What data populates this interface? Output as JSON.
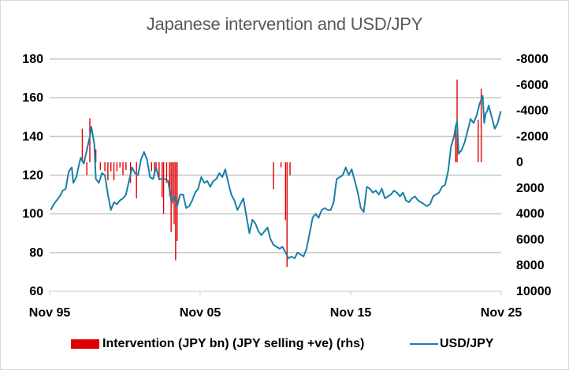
{
  "chart_data": {
    "type": "bar+line",
    "title": "Japanese intervention and USD/JPY",
    "xlabel": "",
    "ylabel_left": "",
    "ylabel_right": "",
    "x_range": [
      1995.83,
      2025.83
    ],
    "x_ticks": [
      {
        "label": "Nov 95",
        "t": 1995.83
      },
      {
        "label": "Nov 05",
        "t": 2005.83
      },
      {
        "label": "Nov 15",
        "t": 2015.83
      },
      {
        "label": "Nov 25",
        "t": 2025.83
      }
    ],
    "y_left": {
      "min": 60,
      "max": 180,
      "ticks": [
        "180",
        "160",
        "140",
        "120",
        "100",
        "80",
        "60"
      ],
      "tick_values": [
        180,
        160,
        140,
        120,
        100,
        80,
        60
      ]
    },
    "y_right": {
      "min": -8000,
      "max": 10000,
      "reversed": true,
      "ticks": [
        "-8000",
        "-6000",
        "-4000",
        "-2000",
        "0",
        "2000",
        "4000",
        "6000",
        "8000",
        "10000"
      ],
      "tick_values": [
        -8000,
        -6000,
        -4000,
        -2000,
        0,
        2000,
        4000,
        6000,
        8000,
        10000
      ]
    },
    "grid": "horizontal",
    "legend_position": "bottom",
    "series": [
      {
        "name": "Intervention (JPY bn) (JPY selling +ve) (rhs)",
        "type": "bar",
        "axis": "right",
        "color": "#e00000",
        "points": [
          [
            1998.0,
            -2600
          ],
          [
            1998.3,
            1000
          ],
          [
            1998.5,
            -3400
          ],
          [
            1998.9,
            -1000
          ],
          [
            1999.2,
            600
          ],
          [
            1999.5,
            700
          ],
          [
            1999.7,
            1400
          ],
          [
            1999.9,
            700
          ],
          [
            2000.1,
            1400
          ],
          [
            2000.3,
            700
          ],
          [
            2000.5,
            400
          ],
          [
            2000.7,
            1000
          ],
          [
            2000.9,
            600
          ],
          [
            2001.2,
            1600
          ],
          [
            2001.6,
            2800
          ],
          [
            2002.6,
            700
          ],
          [
            2002.8,
            1000
          ],
          [
            2002.9,
            400
          ],
          [
            2003.1,
            1400
          ],
          [
            2003.3,
            2700
          ],
          [
            2003.4,
            4000
          ],
          [
            2003.6,
            1600
          ],
          [
            2003.8,
            2600
          ],
          [
            2003.9,
            5400
          ],
          [
            2004.0,
            3200
          ],
          [
            2004.1,
            4800
          ],
          [
            2004.2,
            7600
          ],
          [
            2004.3,
            6100
          ],
          [
            2010.7,
            2100
          ],
          [
            2011.2,
            400
          ],
          [
            2011.5,
            4500
          ],
          [
            2011.6,
            8100
          ],
          [
            2011.8,
            1000
          ],
          [
            2022.7,
            0
          ],
          [
            2022.8,
            -2800
          ],
          [
            2022.9,
            -6400
          ],
          [
            2024.3,
            -3300
          ],
          [
            2024.5,
            -5700
          ]
        ]
      },
      {
        "name": "USD/JPY",
        "type": "line",
        "axis": "left",
        "color": "#1a7fa6",
        "points": [
          [
            1995.9,
            102
          ],
          [
            1996.1,
            105
          ],
          [
            1996.3,
            107
          ],
          [
            1996.5,
            109
          ],
          [
            1996.7,
            112
          ],
          [
            1996.9,
            113
          ],
          [
            1997.1,
            122
          ],
          [
            1997.3,
            124
          ],
          [
            1997.4,
            116
          ],
          [
            1997.6,
            119
          ],
          [
            1997.8,
            126
          ],
          [
            1997.9,
            129
          ],
          [
            1998.1,
            126
          ],
          [
            1998.3,
            133
          ],
          [
            1998.5,
            140
          ],
          [
            1998.6,
            145
          ],
          [
            1998.8,
            136
          ],
          [
            1998.9,
            118
          ],
          [
            1999.1,
            116
          ],
          [
            1999.3,
            121
          ],
          [
            1999.5,
            120
          ],
          [
            1999.7,
            110
          ],
          [
            1999.9,
            102
          ],
          [
            2000.1,
            106
          ],
          [
            2000.3,
            105
          ],
          [
            2000.5,
            107
          ],
          [
            2000.7,
            108
          ],
          [
            2000.9,
            110
          ],
          [
            2001.1,
            117
          ],
          [
            2001.3,
            124
          ],
          [
            2001.5,
            121
          ],
          [
            2001.7,
            120
          ],
          [
            2001.9,
            128
          ],
          [
            2002.1,
            132
          ],
          [
            2002.3,
            128
          ],
          [
            2002.5,
            119
          ],
          [
            2002.7,
            118
          ],
          [
            2002.9,
            124
          ],
          [
            2003.1,
            118
          ],
          [
            2003.3,
            118
          ],
          [
            2003.5,
            118
          ],
          [
            2003.7,
            117
          ],
          [
            2003.9,
            107
          ],
          [
            2004.1,
            109
          ],
          [
            2004.3,
            104
          ],
          [
            2004.5,
            110
          ],
          [
            2004.7,
            110
          ],
          [
            2004.9,
            103
          ],
          [
            2005.1,
            104
          ],
          [
            2005.3,
            107
          ],
          [
            2005.5,
            111
          ],
          [
            2005.7,
            113
          ],
          [
            2005.9,
            119
          ],
          [
            2006.1,
            116
          ],
          [
            2006.3,
            117
          ],
          [
            2006.5,
            114
          ],
          [
            2006.7,
            117
          ],
          [
            2006.9,
            118
          ],
          [
            2007.1,
            121
          ],
          [
            2007.3,
            119
          ],
          [
            2007.5,
            123
          ],
          [
            2007.7,
            116
          ],
          [
            2007.9,
            110
          ],
          [
            2008.1,
            107
          ],
          [
            2008.3,
            102
          ],
          [
            2008.5,
            105
          ],
          [
            2008.7,
            108
          ],
          [
            2008.9,
            99
          ],
          [
            2009.1,
            90
          ],
          [
            2009.3,
            97
          ],
          [
            2009.5,
            95
          ],
          [
            2009.7,
            91
          ],
          [
            2009.9,
            89
          ],
          [
            2010.1,
            91
          ],
          [
            2010.3,
            93
          ],
          [
            2010.5,
            87
          ],
          [
            2010.7,
            84
          ],
          [
            2010.9,
            83
          ],
          [
            2011.1,
            82
          ],
          [
            2011.3,
            83
          ],
          [
            2011.5,
            80
          ],
          [
            2011.7,
            77
          ],
          [
            2011.9,
            78
          ],
          [
            2012.1,
            77
          ],
          [
            2012.3,
            80
          ],
          [
            2012.5,
            79
          ],
          [
            2012.7,
            78
          ],
          [
            2012.9,
            82
          ],
          [
            2013.1,
            90
          ],
          [
            2013.3,
            98
          ],
          [
            2013.5,
            100
          ],
          [
            2013.7,
            98
          ],
          [
            2013.9,
            102
          ],
          [
            2014.1,
            103
          ],
          [
            2014.3,
            102
          ],
          [
            2014.5,
            102
          ],
          [
            2014.7,
            106
          ],
          [
            2014.9,
            118
          ],
          [
            2015.1,
            119
          ],
          [
            2015.3,
            120
          ],
          [
            2015.5,
            124
          ],
          [
            2015.7,
            120
          ],
          [
            2015.9,
            123
          ],
          [
            2016.1,
            117
          ],
          [
            2016.3,
            111
          ],
          [
            2016.5,
            103
          ],
          [
            2016.7,
            101
          ],
          [
            2016.9,
            114
          ],
          [
            2017.1,
            113
          ],
          [
            2017.3,
            111
          ],
          [
            2017.5,
            112
          ],
          [
            2017.7,
            110
          ],
          [
            2017.9,
            113
          ],
          [
            2018.1,
            108
          ],
          [
            2018.3,
            109
          ],
          [
            2018.5,
            110
          ],
          [
            2018.7,
            112
          ],
          [
            2018.9,
            111
          ],
          [
            2019.1,
            109
          ],
          [
            2019.3,
            111
          ],
          [
            2019.5,
            107
          ],
          [
            2019.7,
            106
          ],
          [
            2019.9,
            108
          ],
          [
            2020.1,
            109
          ],
          [
            2020.3,
            107
          ],
          [
            2020.5,
            106
          ],
          [
            2020.7,
            105
          ],
          [
            2020.9,
            104
          ],
          [
            2021.1,
            105
          ],
          [
            2021.3,
            109
          ],
          [
            2021.5,
            110
          ],
          [
            2021.7,
            111
          ],
          [
            2021.9,
            114
          ],
          [
            2022.1,
            115
          ],
          [
            2022.3,
            122
          ],
          [
            2022.5,
            135
          ],
          [
            2022.7,
            140
          ],
          [
            2022.8,
            145
          ],
          [
            2022.9,
            148
          ],
          [
            2023.0,
            131
          ],
          [
            2023.2,
            133
          ],
          [
            2023.4,
            137
          ],
          [
            2023.6,
            143
          ],
          [
            2023.8,
            149
          ],
          [
            2024.0,
            147
          ],
          [
            2024.2,
            151
          ],
          [
            2024.4,
            157
          ],
          [
            2024.6,
            161
          ],
          [
            2024.7,
            147
          ],
          [
            2024.8,
            152
          ],
          [
            2024.9,
            153
          ],
          [
            2025.0,
            156
          ],
          [
            2025.2,
            150
          ],
          [
            2025.4,
            144
          ],
          [
            2025.6,
            147
          ],
          [
            2025.8,
            153
          ]
        ]
      }
    ]
  },
  "legend": {
    "bar_label": "Intervention (JPY bn) (JPY selling +ve) (rhs)",
    "line_label": "USD/JPY"
  }
}
